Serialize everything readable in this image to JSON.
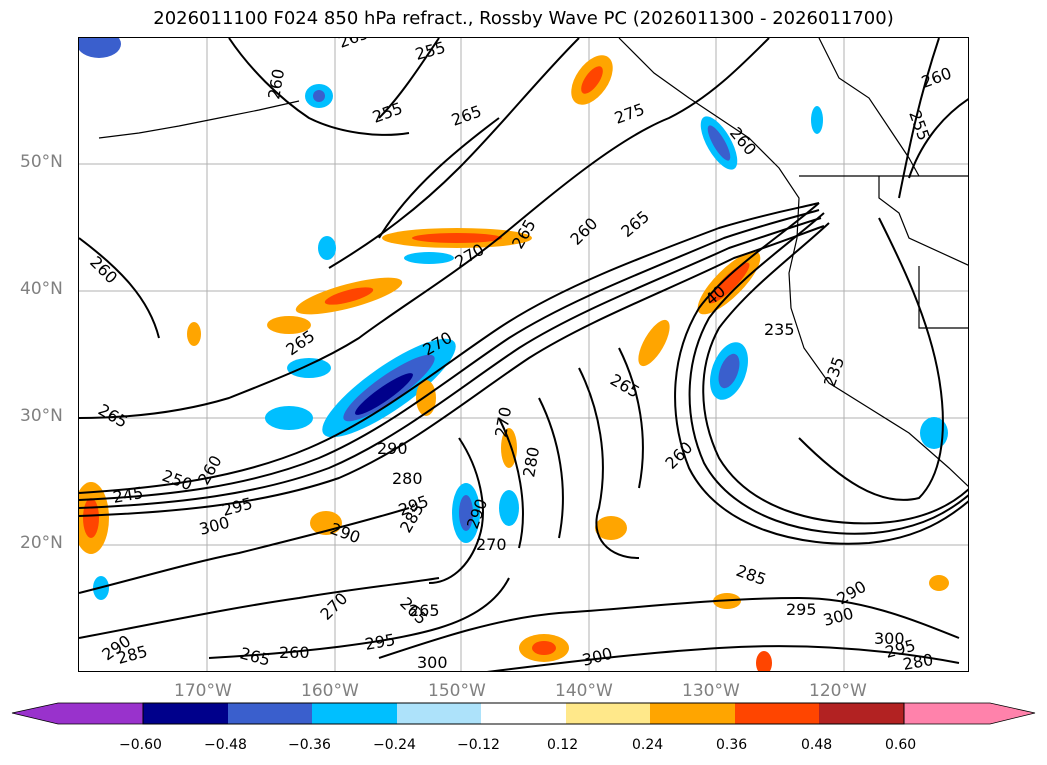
{
  "title": "2026011100 F024 850 hPa refract., Rossby Wave PC (2026011300 - 2026011700)",
  "lat_labels": [
    "50°N",
    "40°N",
    "30°N",
    "20°N"
  ],
  "lon_labels": [
    "170°W",
    "160°W",
    "150°W",
    "140°W",
    "130°W",
    "120°W"
  ],
  "colorbar": {
    "ticks": [
      "−0.60",
      "−0.48",
      "−0.36",
      "−0.24",
      "−0.12",
      "0.12",
      "0.24",
      "0.36",
      "0.48",
      "0.60"
    ],
    "colors": [
      "#9932CC",
      "#00008B",
      "#3A5FCD",
      "#00BFFF",
      "#ADE2FA",
      "#FFFFFF",
      "#FFE88A",
      "#FFA500",
      "#FF4500",
      "#B22222",
      "#FF82AB"
    ]
  },
  "contour_labels": [
    "260",
    "265",
    "255",
    "255",
    "265",
    "275",
    "260",
    "255",
    "260",
    "265",
    "270",
    "265",
    "260",
    "265",
    "260",
    "270",
    "265",
    "40",
    "235",
    "235",
    "265",
    "250",
    "260",
    "245",
    "300",
    "295",
    "290",
    "280",
    "290",
    "295",
    "285",
    "290",
    "270",
    "280",
    "270",
    "260",
    "285",
    "295",
    "290",
    "300",
    "300",
    "295",
    "280",
    "290",
    "285",
    "265",
    "260",
    "270",
    "265",
    "265",
    "295",
    "300",
    "300"
  ]
}
